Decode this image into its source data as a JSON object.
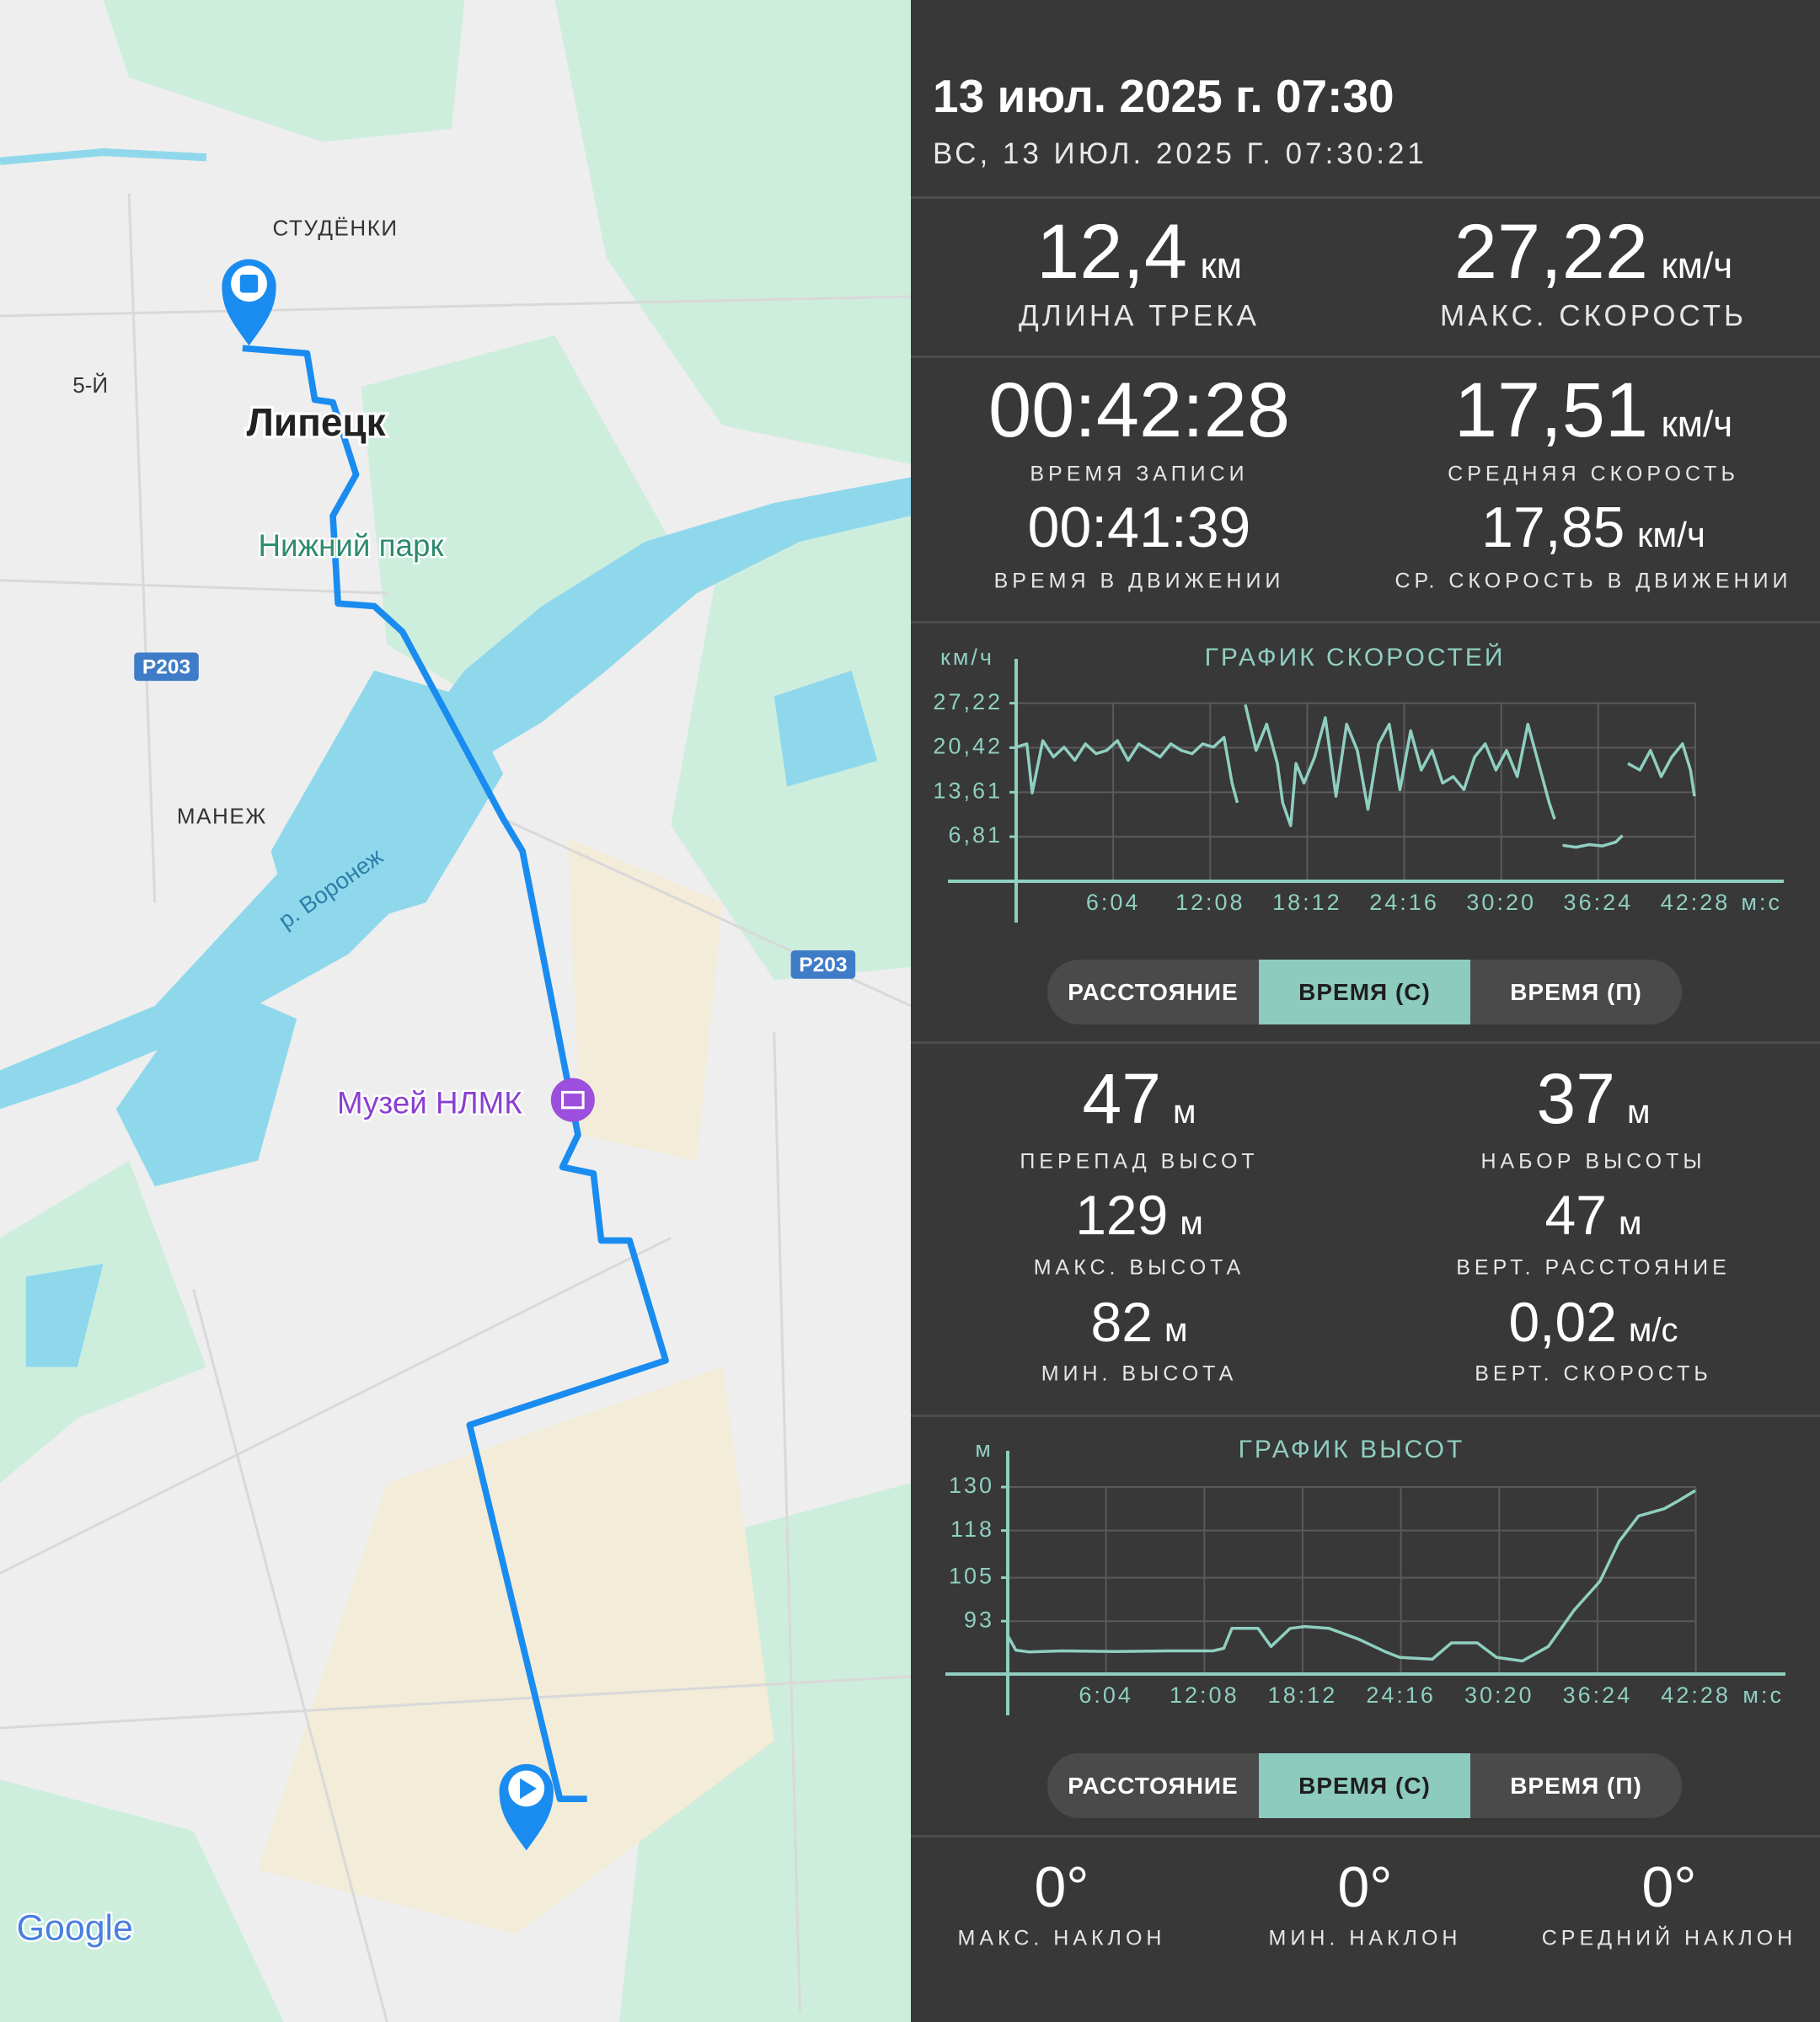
{
  "map": {
    "labels": [
      "СТУДЁНКИ",
      "5-Й",
      "Липецк",
      "Нижний парк",
      "МАНЕЖ",
      "р. Воронеж",
      "Музей НЛМК"
    ],
    "road_badges": [
      "Р203",
      "Р203"
    ],
    "logo": "Google"
  },
  "header": {
    "title": "13 июл. 2025 г. 07:30",
    "subtitle": "ВС, 13 ИЮЛ. 2025 Г. 07:30:21"
  },
  "track_stats": [
    {
      "value": "12,4",
      "unit": "км",
      "label": "ДЛИНА ТРЕКА"
    },
    {
      "value": "27,22",
      "unit": "км/ч",
      "label": "МАКС. СКОРОСТЬ"
    }
  ],
  "time_stats": [
    {
      "value": "00:42:28",
      "label": "ВРЕМЯ ЗАПИСИ"
    },
    {
      "value": "17,51",
      "unit": "км/ч",
      "label": "СРЕДНЯЯ СКОРОСТЬ"
    },
    {
      "value": "00:41:39",
      "label": "ВРЕМЯ В ДВИЖЕНИИ"
    },
    {
      "value": "17,85",
      "unit": "км/ч",
      "label": "СР. СКОРОСТЬ В ДВИЖЕНИИ"
    }
  ],
  "speed_tabs": {
    "options": [
      "РАССТОЯНИЕ",
      "ВРЕМЯ (С)",
      "ВРЕМЯ (П)"
    ],
    "active": 1
  },
  "elevation_stats": [
    {
      "value": "47",
      "unit": "м",
      "label": "ПЕРЕПАД ВЫСОТ"
    },
    {
      "value": "37",
      "unit": "м",
      "label": "НАБОР ВЫСОТЫ"
    },
    {
      "value": "129",
      "unit": "м",
      "label": "МАКС. ВЫСОТА"
    },
    {
      "value": "47",
      "unit": "м",
      "label": "ВЕРТ. РАССТОЯНИЕ"
    },
    {
      "value": "82",
      "unit": "м",
      "label": "МИН. ВЫСОТА"
    },
    {
      "value": "0,02",
      "unit": "м/с",
      "label": "ВЕРТ. СКОРОСТЬ"
    }
  ],
  "elevation_tabs": {
    "options": [
      "РАССТОЯНИЕ",
      "ВРЕМЯ (С)",
      "ВРЕМЯ (П)"
    ],
    "active": 1
  },
  "slope_stats": [
    {
      "value": "0°",
      "label": "МАКС. НАКЛОН"
    },
    {
      "value": "0°",
      "label": "МИН. НАКЛОН"
    },
    {
      "value": "0°",
      "label": "СРЕДНИЙ НАКЛОН"
    }
  ],
  "chart_data": [
    {
      "type": "line",
      "title": "ГРАФИК СКОРОСТЕЙ",
      "y_label": "км/ч",
      "x_label": "м:с",
      "color": "#8fcfc0",
      "grid": true,
      "x": [
        0,
        40,
        60,
        100,
        140,
        180,
        220,
        260,
        300,
        340,
        380,
        420,
        460,
        500,
        540,
        580,
        620,
        660,
        700,
        740,
        780,
        810,
        830,
        840,
        860,
        900,
        940,
        980,
        1000,
        1030,
        1050,
        1080,
        1120,
        1160,
        1200,
        1240,
        1280,
        1320,
        1360,
        1400,
        1440,
        1480,
        1520,
        1560,
        1600,
        1640,
        1680,
        1720,
        1760,
        1800,
        1840,
        1880,
        1920,
        1960,
        2000,
        2020,
        2035,
        2050,
        2100,
        2150,
        2200,
        2250,
        2275,
        2285,
        2295,
        2340,
        2380,
        2420,
        2460,
        2500,
        2530,
        2545
      ],
      "values": [
        20.5,
        21,
        13.5,
        21.5,
        19,
        20.5,
        18.5,
        21,
        19.5,
        20,
        21.5,
        18.5,
        21,
        20,
        19,
        21,
        20,
        19.5,
        21,
        20.5,
        22,
        15,
        12,
        null,
        27,
        20,
        24,
        18,
        12,
        8.5,
        18,
        15,
        19,
        25,
        13,
        24,
        20,
        11,
        21,
        24,
        14,
        23,
        17,
        20,
        15,
        16,
        14,
        19,
        21,
        17,
        20,
        16,
        24,
        18,
        12,
        9.5,
        null,
        5.5,
        5.2,
        5.6,
        5.4,
        6,
        7,
        null,
        18,
        17,
        20,
        16,
        19,
        21,
        17,
        13
      ],
      "xlim": [
        0,
        2880
      ],
      "ylim": [
        0,
        34
      ],
      "xticks": [
        {
          "value": 364,
          "label": "6:04"
        },
        {
          "value": 728,
          "label": "12:08"
        },
        {
          "value": 1092,
          "label": "18:12"
        },
        {
          "value": 1456,
          "label": "24:16"
        },
        {
          "value": 1820,
          "label": "30:20"
        },
        {
          "value": 2184,
          "label": "36:24"
        },
        {
          "value": 2548,
          "label": "42:28"
        }
      ],
      "yticks": [
        {
          "value": 6.81,
          "label": "6,81"
        },
        {
          "value": 13.61,
          "label": "13,61"
        },
        {
          "value": 20.42,
          "label": "20,42"
        },
        {
          "value": 27.22,
          "label": "27,22"
        }
      ]
    },
    {
      "type": "line",
      "title": "ГРАФИК ВЫСОТ",
      "y_label": "м",
      "x_label": "м:с",
      "color": "#8fcfc0",
      "grid": true,
      "x": [
        0,
        30,
        80,
        200,
        400,
        600,
        760,
        800,
        830,
        900,
        927,
        975,
        1046,
        1100,
        1190,
        1300,
        1400,
        1452,
        1572,
        1643,
        1739,
        1810,
        1906,
        2002,
        2097,
        2193,
        2264,
        2336,
        2431,
        2479,
        2546
      ],
      "values": [
        89,
        85,
        84.5,
        84.8,
        84.6,
        84.8,
        84.8,
        85.5,
        91,
        91,
        91,
        86,
        91,
        91.5,
        91,
        88,
        84.5,
        83,
        82.5,
        87,
        87,
        83,
        82,
        86,
        96,
        104,
        115,
        122,
        124,
        126,
        129
      ],
      "xlim": [
        0,
        2880
      ],
      "ylim": [
        78.4,
        140
      ],
      "xticks": [
        {
          "value": 364,
          "label": "6:04"
        },
        {
          "value": 728,
          "label": "12:08"
        },
        {
          "value": 1092,
          "label": "18:12"
        },
        {
          "value": 1456,
          "label": "24:16"
        },
        {
          "value": 1820,
          "label": "30:20"
        },
        {
          "value": 2184,
          "label": "36:24"
        },
        {
          "value": 2548,
          "label": "42:28"
        }
      ],
      "yticks": [
        93,
        105,
        118,
        130
      ]
    }
  ]
}
